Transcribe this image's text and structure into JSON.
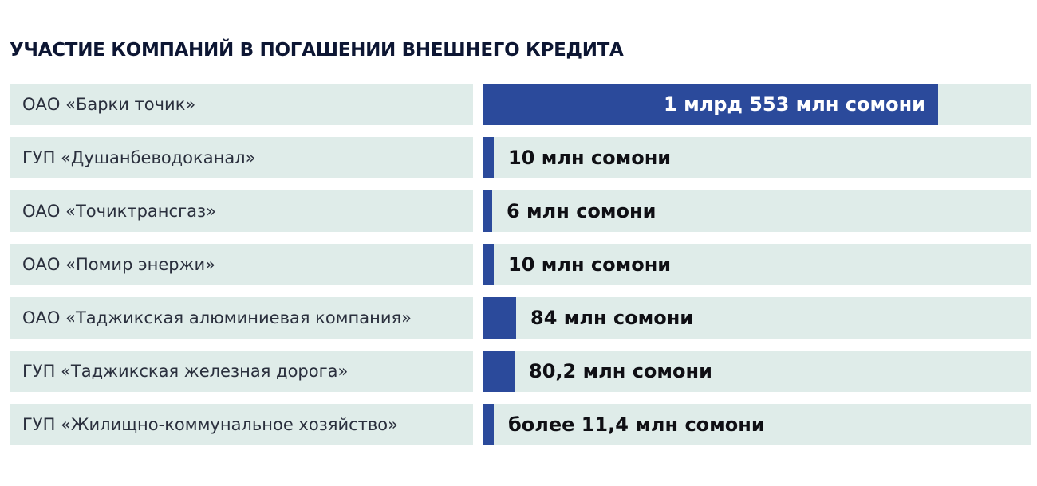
{
  "chart_data": {
    "type": "bar",
    "orientation": "horizontal",
    "title": "УЧАСТИЕ КОМПАНИЙ В ПОГАШЕНИИ ВНЕШНЕГО КРЕДИТА",
    "unit": "млн сомони",
    "categories": [
      "ОАО «Барки точик»",
      "ГУП «Душанбеводоканал»",
      "ОАО «Точиктрансгаз»",
      "ОАО «Помир энержи»",
      "ОАО «Таджикская алюминиевая компания»",
      "ГУП «Таджикская железная дорога»",
      "ГУП «Жилищно-коммунальное хозяйство»"
    ],
    "values": [
      1553,
      10,
      6,
      10,
      84,
      80.2,
      11.4
    ],
    "value_labels": [
      "1 млрд 553 млн сомони",
      "10 млн сомони",
      "6 млн сомони",
      "10 млн сомони",
      "84 млн сомони",
      "80,2 млн сомони",
      "более 11,4 млн сомони"
    ],
    "colors": {
      "bar": "#2b4a9b",
      "row_background": "#dfece9",
      "title": "#0d1633",
      "label_inside": "#ffffff",
      "label_outside": "#0f0f14"
    }
  }
}
